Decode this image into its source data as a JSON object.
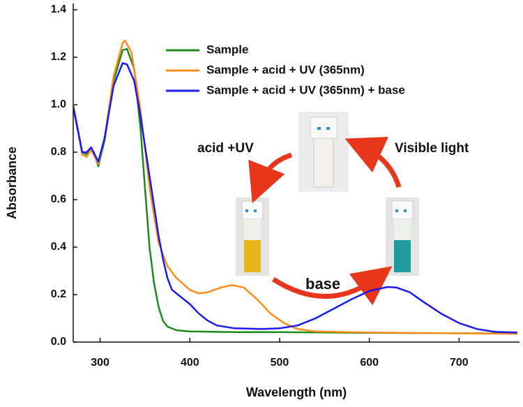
{
  "chart_data": {
    "type": "line",
    "x_label": "Wavelength (nm)",
    "y_label": "Absorbance",
    "xlim": [
      270,
      765
    ],
    "ylim": [
      0,
      1.4
    ],
    "xticks": [
      300,
      400,
      500,
      600,
      700
    ],
    "yticks": [
      {
        "value": 0,
        "label": "0.0"
      },
      0.2,
      0.4,
      0.6,
      0.8,
      {
        "value": 1,
        "label": "1.0"
      },
      1.2,
      1.4
    ],
    "legend": "upper right",
    "annotations": [
      "acid +UV",
      "Visible light",
      "base"
    ],
    "series": [
      {
        "name": "Sample",
        "color": "#1a8a1a",
        "x": [
          270,
          280,
          285,
          290,
          293,
          298,
          305,
          315,
          325,
          330,
          338,
          345,
          350,
          355,
          360,
          365,
          370,
          375,
          385,
          400,
          450,
          500,
          560,
          650,
          765
        ],
        "values": [
          1.0,
          0.8,
          0.79,
          0.81,
          0.8,
          0.74,
          0.85,
          1.1,
          1.23,
          1.235,
          1.15,
          0.9,
          0.65,
          0.4,
          0.25,
          0.15,
          0.09,
          0.065,
          0.05,
          0.045,
          0.042,
          0.042,
          0.04,
          0.038,
          0.036
        ]
      },
      {
        "name": "Sample + acid + UV (365nm)",
        "color": "#ff8c1a",
        "x": [
          270,
          280,
          285,
          290,
          298,
          305,
          315,
          325,
          328,
          335,
          345,
          355,
          365,
          375,
          385,
          400,
          410,
          420,
          435,
          447,
          460,
          475,
          490,
          505,
          520,
          540,
          600,
          765
        ],
        "values": [
          1.0,
          0.79,
          0.78,
          0.81,
          0.75,
          0.86,
          1.12,
          1.26,
          1.27,
          1.22,
          0.98,
          0.65,
          0.42,
          0.32,
          0.27,
          0.22,
          0.205,
          0.21,
          0.23,
          0.24,
          0.23,
          0.18,
          0.12,
          0.08,
          0.055,
          0.045,
          0.04,
          0.035
        ]
      },
      {
        "name": "Sample + acid + UV (365nm) + base",
        "color": "#1a1aee",
        "x": [
          270,
          280,
          285,
          290,
          298,
          305,
          315,
          325,
          330,
          338,
          345,
          355,
          365,
          370,
          375,
          380,
          390,
          400,
          410,
          420,
          430,
          450,
          480,
          500,
          520,
          540,
          560,
          580,
          600,
          620,
          630,
          645,
          660,
          680,
          700,
          720,
          740,
          765
        ],
        "values": [
          0.99,
          0.8,
          0.8,
          0.82,
          0.76,
          0.86,
          1.08,
          1.175,
          1.17,
          1.1,
          0.95,
          0.7,
          0.45,
          0.35,
          0.27,
          0.22,
          0.19,
          0.16,
          0.12,
          0.09,
          0.07,
          0.058,
          0.055,
          0.058,
          0.07,
          0.1,
          0.14,
          0.18,
          0.215,
          0.232,
          0.23,
          0.21,
          0.17,
          0.12,
          0.08,
          0.055,
          0.043,
          0.04
        ]
      }
    ]
  }
}
